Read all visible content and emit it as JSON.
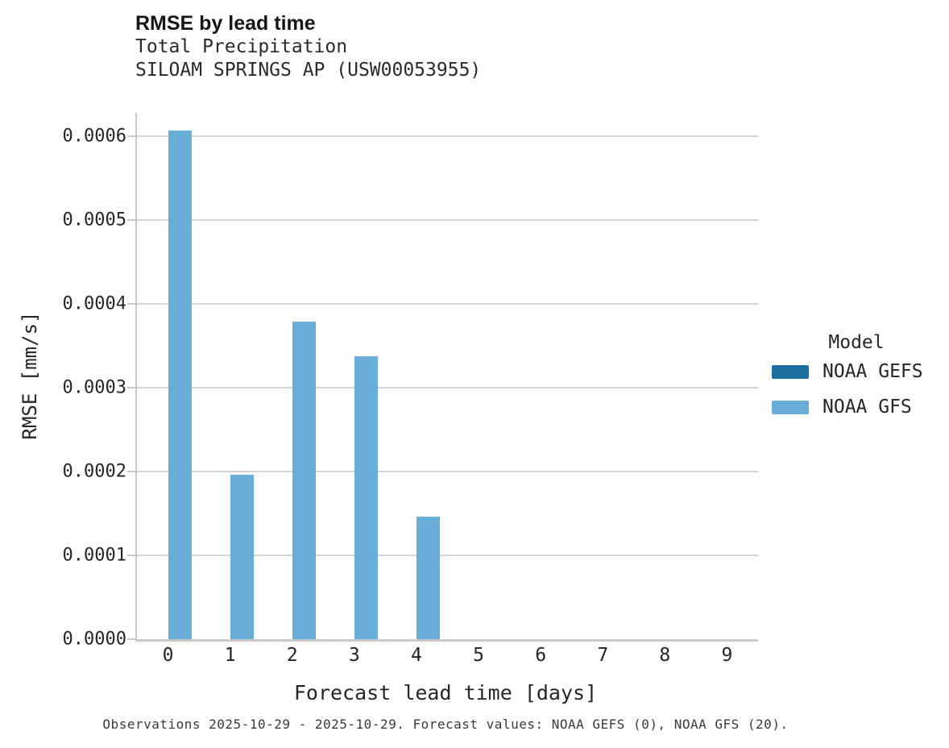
{
  "header": {
    "title": "RMSE by lead time",
    "subtitle_line1": "Total Precipitation",
    "subtitle_line2": "SILOAM SPRINGS AP (USW00053955)"
  },
  "legend": {
    "title": "Model",
    "entries": [
      {
        "label": "NOAA GEFS",
        "color": "#1e6f9f"
      },
      {
        "label": "NOAA GFS",
        "color": "#69aed8"
      }
    ]
  },
  "caption": "Observations 2025-10-29 - 2025-10-29. Forecast values: NOAA GEFS (0), NOAA GFS (20).",
  "chart_data": {
    "type": "bar",
    "title": "RMSE by lead time",
    "subtitle": [
      "Total Precipitation",
      "SILOAM SPRINGS AP (USW00053955)"
    ],
    "xlabel": "Forecast lead time [days]",
    "ylabel": "RMSE [mm/s]",
    "categories": [
      0,
      1,
      2,
      3,
      4,
      5,
      6,
      7,
      8,
      9
    ],
    "series": [
      {
        "name": "NOAA GEFS",
        "color": "#1e6f9f",
        "values": [
          null,
          null,
          null,
          null,
          null,
          null,
          null,
          null,
          null,
          null
        ]
      },
      {
        "name": "NOAA GFS",
        "color": "#69aed8",
        "values": [
          0.000607,
          0.000196,
          0.000379,
          0.000338,
          0.000146,
          null,
          null,
          null,
          null,
          null
        ]
      }
    ],
    "ylim": [
      0,
      0.000628
    ],
    "yticks": [
      0.0,
      0.0001,
      0.0002,
      0.0003,
      0.0004,
      0.0005,
      0.0006
    ],
    "ytick_format_decimals": 4,
    "grid": true,
    "legend_position": "right",
    "colors": {
      "grid": "#d4d4d4",
      "spine": "#c9c9c9",
      "tick_text": "#262626"
    }
  }
}
